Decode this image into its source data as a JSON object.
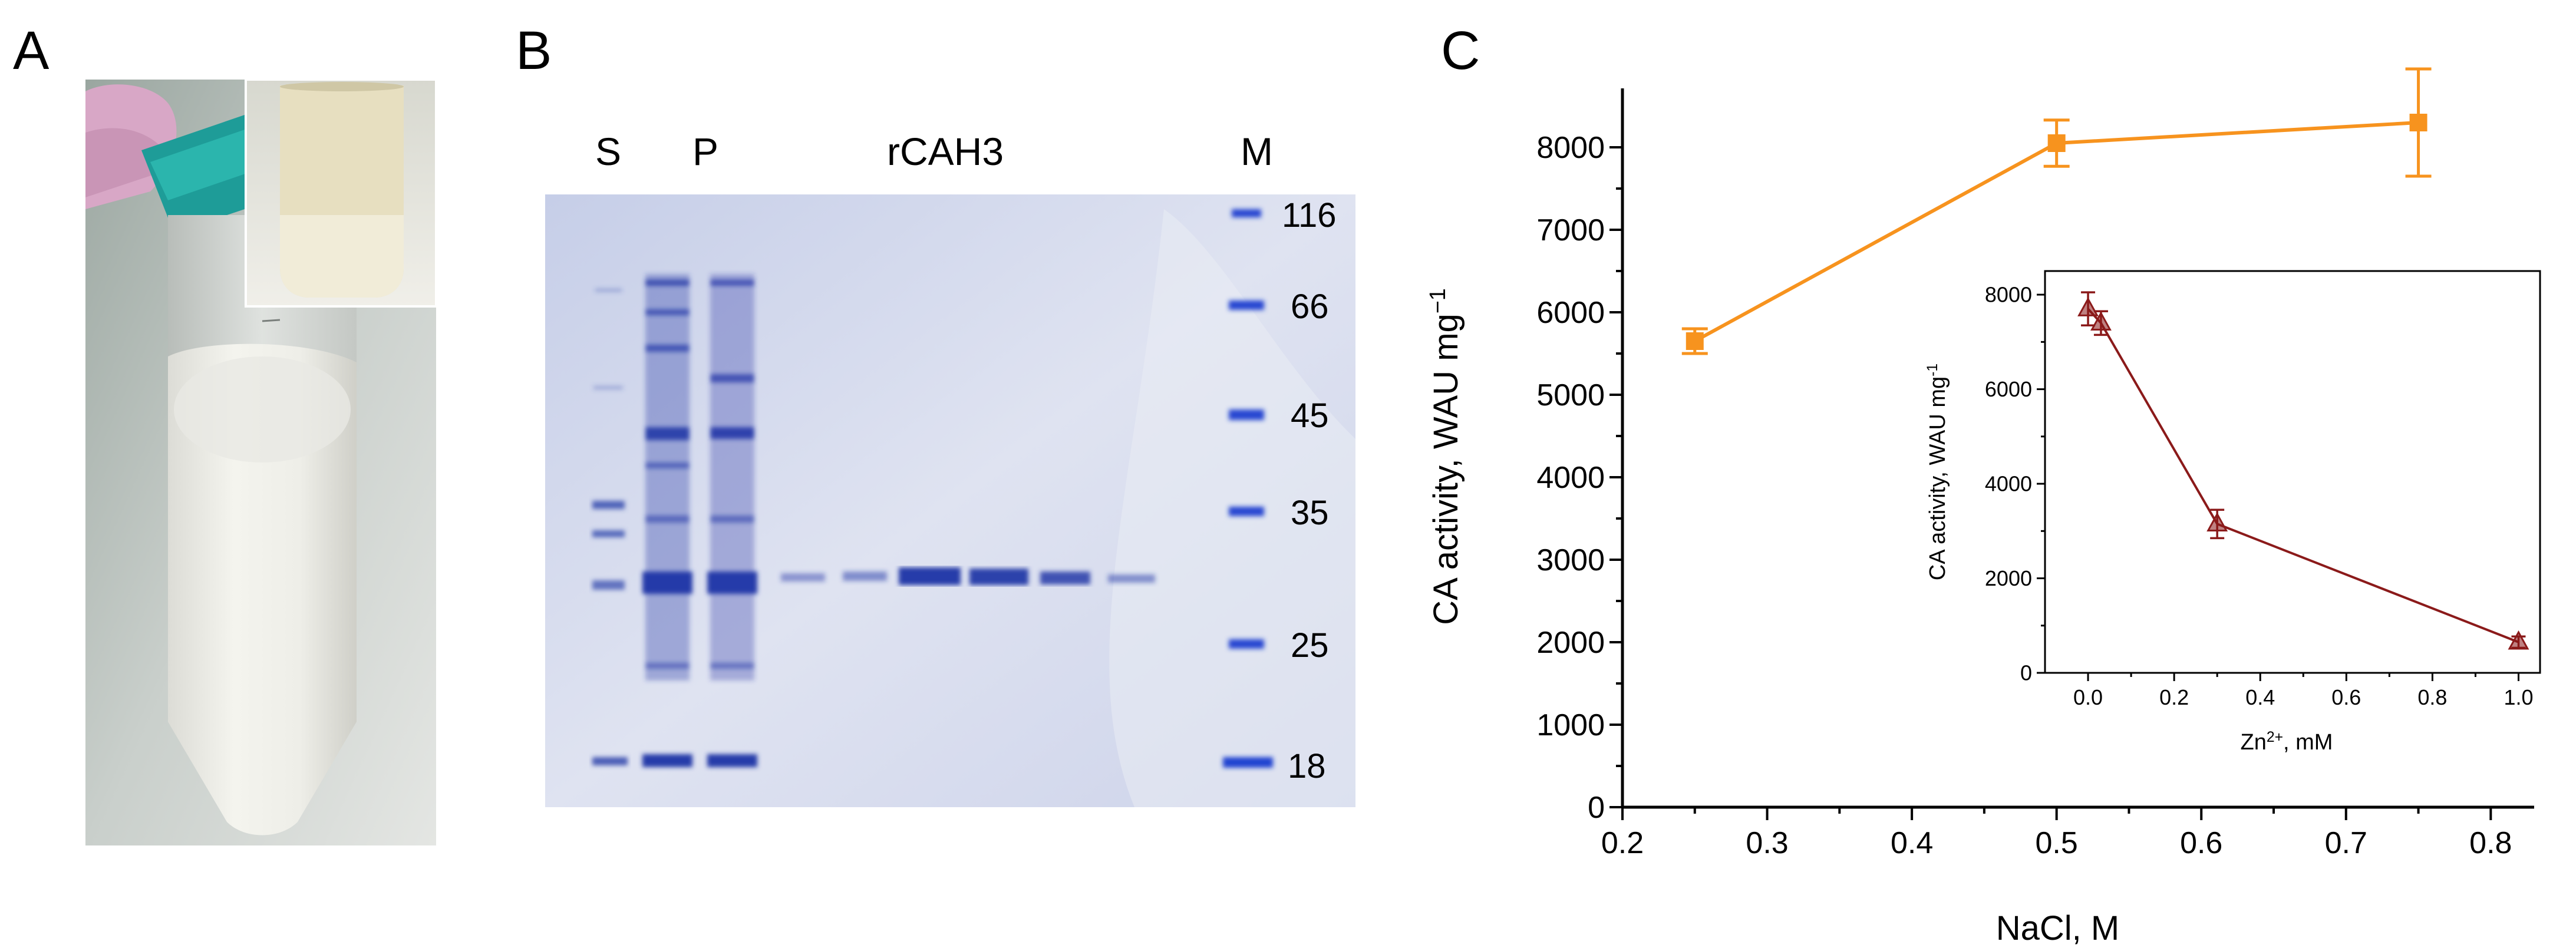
{
  "panels": {
    "a": {
      "letter": "A"
    },
    "b": {
      "letter": "B",
      "lane_labels": {
        "s": "S",
        "p": "P",
        "rcah3": "rCAH3",
        "m": "M"
      },
      "marker_kda": [
        "116",
        "66",
        "45",
        "35",
        "25",
        "18"
      ]
    },
    "c": {
      "letter": "C"
    }
  },
  "chart_data": [
    {
      "type": "line",
      "xlabel": "NaCl, M",
      "ylabel": "CA activity, WAU mg",
      "ylabel_superscript": "−1",
      "xlim": [
        0.2,
        0.83
      ],
      "ylim": [
        0,
        8500
      ],
      "xticks": [
        "0.2",
        "0.3",
        "0.4",
        "0.5",
        "0.6",
        "0.7",
        "0.8"
      ],
      "yticks": [
        "0",
        "1000",
        "2000",
        "3000",
        "4000",
        "5000",
        "6000",
        "7000",
        "8000"
      ],
      "x": [
        0.25,
        0.5,
        0.75
      ],
      "y": [
        5650,
        8050,
        8300
      ],
      "err": [
        150,
        280,
        650
      ],
      "color": "#F7931E",
      "marker": "square"
    },
    {
      "type": "line",
      "inset": true,
      "xlabel": "Zn",
      "xlabel_superscript": "2+",
      "xlabel_suffix": ", mM",
      "ylabel": "CA activity, WAU mg",
      "ylabel_superscript": "-1",
      "xlim": [
        -0.1,
        1.05
      ],
      "ylim": [
        0,
        8500
      ],
      "xticks": [
        "0.0",
        "0.2",
        "0.4",
        "0.6",
        "0.8",
        "1.0"
      ],
      "yticks": [
        "0",
        "2000",
        "4000",
        "6000",
        "8000"
      ],
      "x": [
        0.0,
        0.03,
        0.3,
        1.0
      ],
      "y": [
        7700,
        7400,
        3150,
        650
      ],
      "err": [
        350,
        250,
        300,
        120
      ],
      "color": "#8B1A1A",
      "marker": "triangle-open"
    }
  ]
}
